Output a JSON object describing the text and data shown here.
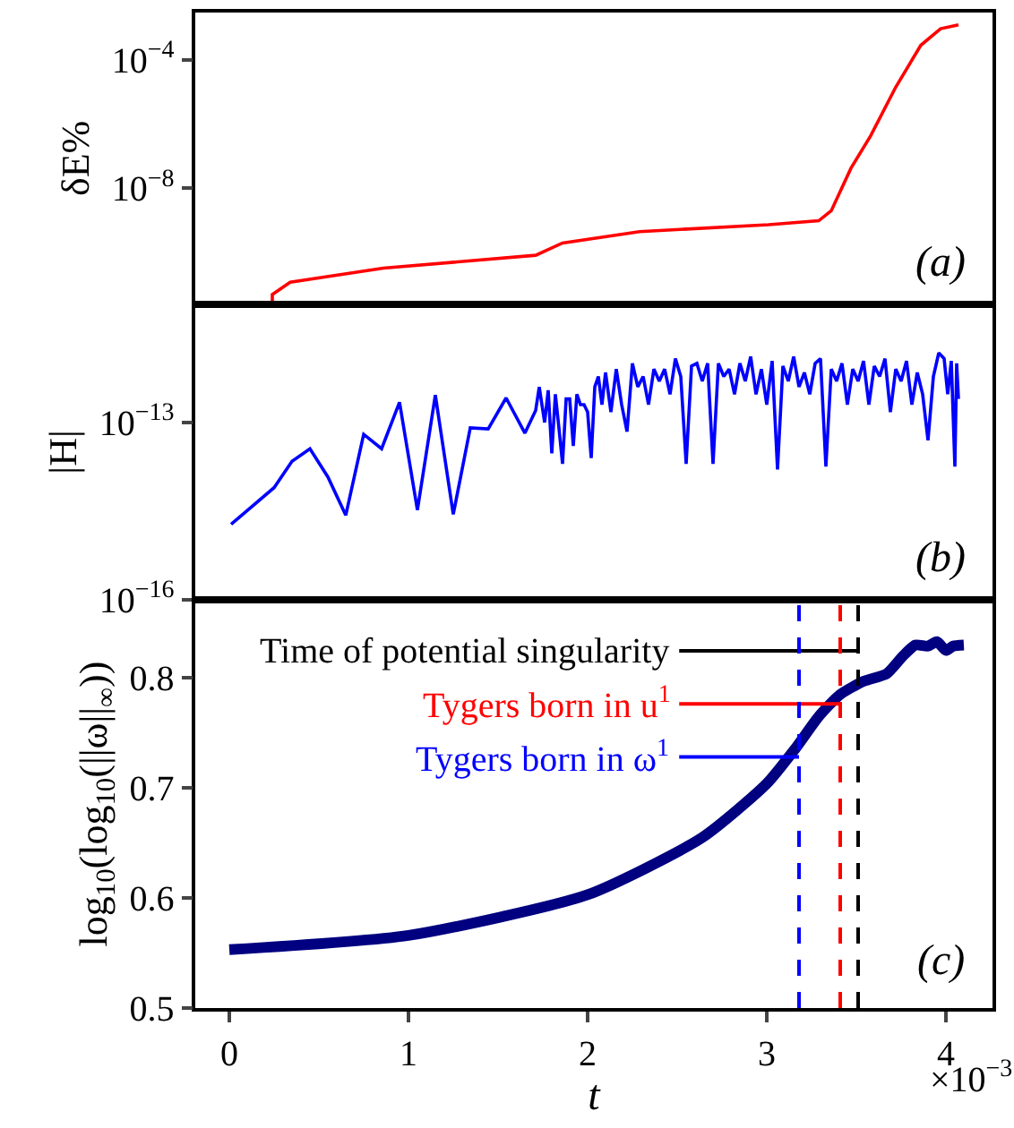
{
  "chart_data": [
    {
      "type": "line",
      "ylabel": "δE%",
      "log": true,
      "marker": "none",
      "line_style": "solid",
      "tick_labels": "y",
      "xlim": [
        -0.19,
        4.26
      ],
      "ylim": [
        2.5e-12,
        0.0029
      ],
      "yticks": [
        {
          "value": 0.0001,
          "label": "10$^{−4}$"
        },
        {
          "value": 1e-08,
          "label": "10$^{−8}$"
        }
      ],
      "annotations": [
        "(a)"
      ],
      "series": [
        {
          "color": "#ff0000",
          "x": [
            0.24,
            0.24,
            0.34,
            0.86,
            1.71,
            1.86,
            2.29,
            3.01,
            3.29,
            3.36,
            3.47,
            3.58,
            3.72,
            3.86,
            3.97,
            4.07
          ],
          "values": [
            2.5e-12,
            5e-12,
            1.2e-11,
            3.3e-11,
            8.3e-11,
            2e-10,
            4.5e-10,
            7.4e-10,
            9.8e-10,
            2e-09,
            4.2e-08,
            4.3e-07,
            1.4e-05,
            0.00028,
            0.00091,
            0.0012
          ]
        }
      ]
    },
    {
      "type": "line",
      "ylabel": "|H|",
      "log": true,
      "marker": "none",
      "line_style": "solid",
      "tick_labels": "y",
      "xlim": [
        -0.19,
        4.26
      ],
      "ylim": [
        1e-16,
        1e-11
      ],
      "yticks": [
        {
          "value": 1e-13,
          "label": "10$^{−13}$"
        },
        {
          "value": 1e-16,
          "label": "10$^{−16}$"
        }
      ],
      "annotations": [
        "(b)"
      ],
      "series": [
        {
          "color": "#0000ff",
          "x": [
            0.01,
            0.25,
            0.35,
            0.45,
            0.55,
            0.65,
            0.75,
            0.85,
            0.95,
            1.05,
            1.15,
            1.25,
            1.345,
            1.445,
            1.545,
            1.65,
            1.71,
            1.73,
            1.76,
            1.78,
            1.8,
            1.82,
            1.84,
            1.86,
            1.88,
            1.9,
            1.92,
            1.94,
            1.96,
            1.98,
            2.0,
            2.02,
            2.04,
            2.06,
            2.08,
            2.1,
            2.13,
            2.16,
            2.19,
            2.22,
            2.25,
            2.28,
            2.31,
            2.34,
            2.37,
            2.4,
            2.43,
            2.46,
            2.49,
            2.52,
            2.55,
            2.58,
            2.61,
            2.64,
            2.67,
            2.7,
            2.73,
            2.76,
            2.79,
            2.82,
            2.85,
            2.88,
            2.91,
            2.94,
            2.97,
            3.0,
            3.03,
            3.06,
            3.09,
            3.12,
            3.15,
            3.18,
            3.21,
            3.24,
            3.27,
            3.3,
            3.33,
            3.36,
            3.39,
            3.42,
            3.45,
            3.48,
            3.51,
            3.54,
            3.57,
            3.6,
            3.63,
            3.66,
            3.69,
            3.72,
            3.75,
            3.78,
            3.81,
            3.84,
            3.87,
            3.9,
            3.93,
            3.96,
            3.99,
            4.01,
            4.03,
            4.05,
            4.06,
            4.07
          ],
          "values": [
            1.9e-15,
            7.9e-15,
            2.2e-14,
            3.6e-14,
            1.2e-14,
            2.7e-15,
            6.3e-14,
            3.6e-14,
            2.2e-13,
            3.3e-15,
            2.9e-13,
            2.8e-15,
            8.1e-14,
            7.8e-14,
            2.6e-13,
            6.6e-14,
            1.6e-13,
            4e-13,
            1e-13,
            3.5e-13,
            3e-14,
            3e-13,
            8e-14,
            2e-14,
            2.5e-13,
            2.5e-13,
            4e-14,
            3e-13,
            2e-13,
            2e-13,
            1.5e-13,
            2.5e-14,
            4e-13,
            6e-13,
            2e-13,
            7e-13,
            1.5e-13,
            8e-13,
            2e-13,
            7e-14,
            1e-12,
            4e-13,
            6e-13,
            2e-13,
            8e-13,
            5e-13,
            8e-13,
            3e-13,
            1.2e-12,
            6e-13,
            2e-14,
            9e-13,
            1e-12,
            5e-13,
            1e-12,
            2e-14,
            1e-12,
            6e-13,
            8e-13,
            3e-13,
            1e-12,
            5e-13,
            1.3e-12,
            3e-13,
            8e-13,
            2e-13,
            1.1e-12,
            1.6e-14,
            9e-13,
            5e-13,
            1.3e-12,
            4e-13,
            7e-13,
            3e-13,
            1e-12,
            1.2e-12,
            1.8e-14,
            8e-13,
            5e-13,
            1e-12,
            2e-13,
            8e-13,
            5e-13,
            1.1e-12,
            2e-13,
            9e-13,
            6e-13,
            1.2e-12,
            1.5e-13,
            8e-13,
            5e-13,
            1.1e-12,
            2e-13,
            7e-13,
            3e-13,
            5e-14,
            6e-13,
            1.5e-12,
            1.2e-12,
            3e-13,
            1.1e-12,
            1.8e-14,
            1e-12,
            2.5e-13
          ]
        }
      ]
    },
    {
      "type": "line",
      "xlabel": "t",
      "ylabel": "log$_{10}$(log$_{10}$(||ω||$_{∞}$))",
      "marker": "none",
      "line_style": "solid",
      "xlim": [
        -0.19,
        4.26
      ],
      "ylim": [
        0.5,
        0.871
      ],
      "xticks": [
        0,
        1,
        2,
        3,
        4
      ],
      "yticks": [
        0.5,
        0.6,
        0.7,
        0.8
      ],
      "annotations": [
        "(c)",
        "×10$^{−3}$"
      ],
      "ref_lines": [
        {
          "axis": "x",
          "value": 3.51,
          "label": "Time of potential singularity",
          "color": "#000000",
          "line_style": "dashed"
        },
        {
          "axis": "x",
          "value": 3.41,
          "label": "Tygers born in u$^{1}$",
          "color": "#ff0000",
          "line_style": "dashed"
        },
        {
          "axis": "x",
          "value": 3.18,
          "label": "Tygers born in ω$^{1}$",
          "color": "#0000ff",
          "line_style": "dashed"
        }
      ],
      "series": [
        {
          "color": "#000080",
          "x": [
            0,
            1.0,
            2.0,
            2.64,
            3.0,
            3.16,
            3.29,
            3.41,
            3.54,
            3.67,
            3.76,
            3.83,
            3.9,
            3.95,
            4.0,
            4.04,
            4.1
          ],
          "values": [
            0.553,
            0.566,
            0.603,
            0.655,
            0.704,
            0.736,
            0.765,
            0.785,
            0.797,
            0.804,
            0.82,
            0.83,
            0.829,
            0.833,
            0.825,
            0.829,
            0.83
          ]
        }
      ]
    }
  ]
}
